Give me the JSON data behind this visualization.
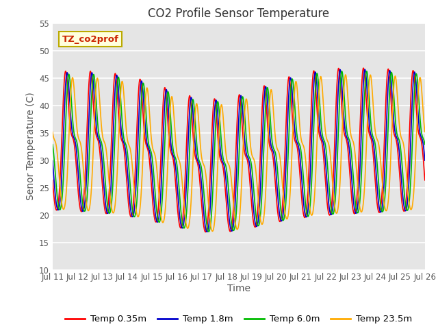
{
  "title": "CO2 Profile Sensor Temperature",
  "xlabel": "Time",
  "ylabel": "Senor Temperature (C)",
  "ylim": [
    10,
    55
  ],
  "annotation_text": "TZ_co2prof",
  "annotation_bg": "#ffffdd",
  "annotation_border": "#bbaa00",
  "series": [
    {
      "label": "Temp 0.35m",
      "color": "#ff0000",
      "phase_lag": 0.0
    },
    {
      "label": "Temp 1.8m",
      "color": "#0000cc",
      "phase_lag": 0.06
    },
    {
      "label": "Temp 6.0m",
      "color": "#00bb00",
      "phase_lag": 0.13
    },
    {
      "label": "Temp 23.5m",
      "color": "#ffaa00",
      "phase_lag": 0.28
    }
  ],
  "x_tick_labels": [
    "Jul 11",
    "Jul 12",
    "Jul 13",
    "Jul 14",
    "Jul 15",
    "Jul 16",
    "Jul 17",
    "Jul 18",
    "Jul 19",
    "Jul 20",
    "Jul 21",
    "Jul 22",
    "Jul 23",
    "Jul 24",
    "Jul 25",
    "Jul 26"
  ],
  "background_color": "#ffffff",
  "plot_bg_color": "#e5e5e5",
  "grid_color": "#ffffff",
  "title_fontsize": 12,
  "label_fontsize": 10,
  "tick_fontsize": 8.5,
  "legend_fontsize": 9.5
}
